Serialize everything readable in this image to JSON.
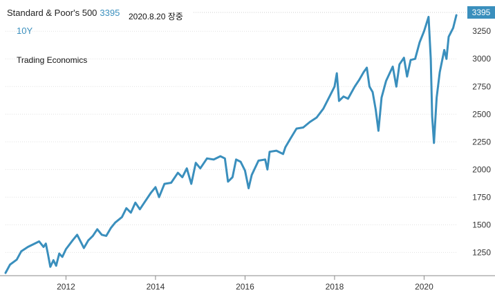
{
  "header": {
    "title": "Standard & Poor's 500",
    "last_value": "3395",
    "date_note": "2020.8.20 장중",
    "range": "10Y",
    "source": "Trading Economics"
  },
  "colors": {
    "line": "#3a8fbd",
    "grid": "#e0e0e0",
    "axis_text": "#333333",
    "badge": "#3a8fbd"
  },
  "chart_data": {
    "type": "line",
    "title": "Standard & Poor's 500",
    "xlabel": "",
    "ylabel": "",
    "grid": true,
    "legend": "none",
    "last_value_label": "3395",
    "x_ticks": [
      2012,
      2014,
      2016,
      2018,
      2020
    ],
    "y_ticks": [
      1250,
      1500,
      1750,
      2000,
      2250,
      2500,
      2750,
      3000,
      3250
    ],
    "xlim": [
      2010.65,
      2020.75
    ],
    "ylim": [
      1040,
      3420
    ],
    "series": [
      {
        "values": [
          [
            2010.65,
            1065
          ],
          [
            2010.75,
            1140
          ],
          [
            2010.9,
            1185
          ],
          [
            2011.0,
            1260
          ],
          [
            2011.15,
            1300
          ],
          [
            2011.3,
            1330
          ],
          [
            2011.4,
            1350
          ],
          [
            2011.5,
            1300
          ],
          [
            2011.55,
            1330
          ],
          [
            2011.6,
            1230
          ],
          [
            2011.65,
            1120
          ],
          [
            2011.72,
            1180
          ],
          [
            2011.78,
            1130
          ],
          [
            2011.85,
            1240
          ],
          [
            2011.92,
            1210
          ],
          [
            2012.0,
            1280
          ],
          [
            2012.15,
            1360
          ],
          [
            2012.25,
            1410
          ],
          [
            2012.35,
            1330
          ],
          [
            2012.4,
            1290
          ],
          [
            2012.5,
            1360
          ],
          [
            2012.6,
            1400
          ],
          [
            2012.7,
            1460
          ],
          [
            2012.8,
            1410
          ],
          [
            2012.9,
            1400
          ],
          [
            2013.0,
            1470
          ],
          [
            2013.1,
            1520
          ],
          [
            2013.25,
            1570
          ],
          [
            2013.35,
            1650
          ],
          [
            2013.45,
            1610
          ],
          [
            2013.55,
            1700
          ],
          [
            2013.65,
            1640
          ],
          [
            2013.75,
            1700
          ],
          [
            2013.9,
            1790
          ],
          [
            2014.0,
            1840
          ],
          [
            2014.08,
            1750
          ],
          [
            2014.2,
            1870
          ],
          [
            2014.35,
            1880
          ],
          [
            2014.5,
            1970
          ],
          [
            2014.6,
            1930
          ],
          [
            2014.7,
            2010
          ],
          [
            2014.8,
            1870
          ],
          [
            2014.9,
            2060
          ],
          [
            2015.0,
            2010
          ],
          [
            2015.15,
            2100
          ],
          [
            2015.3,
            2090
          ],
          [
            2015.45,
            2120
          ],
          [
            2015.55,
            2100
          ],
          [
            2015.62,
            1890
          ],
          [
            2015.72,
            1930
          ],
          [
            2015.8,
            2090
          ],
          [
            2015.9,
            2070
          ],
          [
            2016.0,
            1990
          ],
          [
            2016.08,
            1830
          ],
          [
            2016.15,
            1950
          ],
          [
            2016.3,
            2080
          ],
          [
            2016.45,
            2090
          ],
          [
            2016.5,
            2000
          ],
          [
            2016.55,
            2160
          ],
          [
            2016.7,
            2170
          ],
          [
            2016.85,
            2140
          ],
          [
            2016.9,
            2200
          ],
          [
            2017.0,
            2270
          ],
          [
            2017.15,
            2370
          ],
          [
            2017.3,
            2380
          ],
          [
            2017.45,
            2430
          ],
          [
            2017.6,
            2470
          ],
          [
            2017.75,
            2550
          ],
          [
            2017.9,
            2670
          ],
          [
            2018.0,
            2750
          ],
          [
            2018.05,
            2870
          ],
          [
            2018.1,
            2620
          ],
          [
            2018.2,
            2660
          ],
          [
            2018.3,
            2640
          ],
          [
            2018.45,
            2750
          ],
          [
            2018.55,
            2810
          ],
          [
            2018.65,
            2880
          ],
          [
            2018.72,
            2920
          ],
          [
            2018.78,
            2750
          ],
          [
            2018.85,
            2700
          ],
          [
            2018.92,
            2540
          ],
          [
            2018.98,
            2350
          ],
          [
            2019.05,
            2650
          ],
          [
            2019.15,
            2800
          ],
          [
            2019.3,
            2930
          ],
          [
            2019.38,
            2750
          ],
          [
            2019.45,
            2950
          ],
          [
            2019.55,
            3010
          ],
          [
            2019.62,
            2840
          ],
          [
            2019.7,
            2990
          ],
          [
            2019.8,
            3000
          ],
          [
            2019.9,
            3150
          ],
          [
            2020.0,
            3250
          ],
          [
            2020.1,
            3380
          ],
          [
            2020.15,
            3000
          ],
          [
            2020.18,
            2480
          ],
          [
            2020.22,
            2240
          ],
          [
            2020.28,
            2650
          ],
          [
            2020.35,
            2880
          ],
          [
            2020.45,
            3080
          ],
          [
            2020.5,
            3000
          ],
          [
            2020.55,
            3200
          ],
          [
            2020.65,
            3280
          ],
          [
            2020.72,
            3395
          ]
        ]
      }
    ]
  }
}
